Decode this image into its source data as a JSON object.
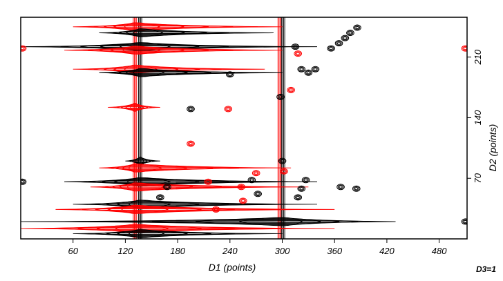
{
  "chart_data": {
    "type": "contour",
    "xlabel": "D1 (points)",
    "ylabel": "D2 (points)",
    "corner_label": "D3=1",
    "xlim": [
      0,
      512
    ],
    "ylim": [
      0,
      256
    ],
    "x_ticks": [
      {
        "value": 60,
        "label": "60"
      },
      {
        "value": 120,
        "label": "120"
      },
      {
        "value": 180,
        "label": "180"
      },
      {
        "value": 240,
        "label": "240"
      },
      {
        "value": 300,
        "label": "300"
      },
      {
        "value": 360,
        "label": "360"
      },
      {
        "value": 420,
        "label": "420"
      },
      {
        "value": 480,
        "label": "480"
      }
    ],
    "y_ticks": [
      {
        "value": 70,
        "label": "70"
      },
      {
        "value": 140,
        "label": "140"
      },
      {
        "value": 210,
        "label": "210"
      }
    ],
    "colors": {
      "positive": "#000000",
      "negative": "#ff0000"
    },
    "vertical_ridges": [
      {
        "x": 131,
        "color": "negative"
      },
      {
        "x": 137,
        "color": "positive"
      },
      {
        "x": 297,
        "color": "negative"
      },
      {
        "x": 301,
        "color": "positive"
      }
    ],
    "streaks": [
      {
        "y": 245,
        "x_start": 60,
        "x_end": 300,
        "peak": 131,
        "color": "negative"
      },
      {
        "y": 238,
        "x_start": 90,
        "x_end": 290,
        "peak": 137,
        "color": "positive"
      },
      {
        "y": 222,
        "x_start": 0,
        "x_end": 340,
        "peak": 137,
        "color": "positive"
      },
      {
        "y": 218,
        "x_start": 50,
        "x_end": 300,
        "peak": 131,
        "color": "negative"
      },
      {
        "y": 196,
        "x_start": 60,
        "x_end": 280,
        "peak": 131,
        "color": "negative"
      },
      {
        "y": 192,
        "x_start": 90,
        "x_end": 300,
        "peak": 137,
        "color": "positive"
      },
      {
        "y": 152,
        "x_start": 100,
        "x_end": 160,
        "peak": 131,
        "color": "negative"
      },
      {
        "y": 90,
        "x_start": 120,
        "x_end": 160,
        "peak": 137,
        "color": "positive"
      },
      {
        "y": 82,
        "x_start": 90,
        "x_end": 310,
        "peak": 131,
        "color": "negative"
      },
      {
        "y": 66,
        "x_start": 50,
        "x_end": 340,
        "peak": 137,
        "color": "positive"
      },
      {
        "y": 60,
        "x_start": 80,
        "x_end": 330,
        "peak": 131,
        "color": "negative"
      },
      {
        "y": 40,
        "x_start": 60,
        "x_end": 340,
        "peak": 137,
        "color": "positive"
      },
      {
        "y": 34,
        "x_start": 40,
        "x_end": 360,
        "peak": 131,
        "color": "negative"
      },
      {
        "y": 20,
        "x_start": 0,
        "x_end": 430,
        "peak": 301,
        "color": "positive"
      },
      {
        "y": 12,
        "x_start": 0,
        "x_end": 360,
        "peak": 131,
        "color": "negative"
      },
      {
        "y": 6,
        "x_start": 60,
        "x_end": 300,
        "peak": 137,
        "color": "positive"
      }
    ],
    "peaks": [
      {
        "x": 365,
        "y": 226,
        "color": "positive"
      },
      {
        "x": 372,
        "y": 232,
        "color": "positive"
      },
      {
        "x": 378,
        "y": 238,
        "color": "positive"
      },
      {
        "x": 386,
        "y": 244,
        "color": "positive"
      },
      {
        "x": 356,
        "y": 220,
        "color": "positive"
      },
      {
        "x": 315,
        "y": 222,
        "color": "positive"
      },
      {
        "x": 318,
        "y": 214,
        "color": "negative"
      },
      {
        "x": 322,
        "y": 196,
        "color": "positive"
      },
      {
        "x": 330,
        "y": 192,
        "color": "positive"
      },
      {
        "x": 338,
        "y": 196,
        "color": "positive"
      },
      {
        "x": 240,
        "y": 190,
        "color": "positive"
      },
      {
        "x": 195,
        "y": 150,
        "color": "positive"
      },
      {
        "x": 195,
        "y": 110,
        "color": "negative"
      },
      {
        "x": 238,
        "y": 150,
        "color": "negative"
      },
      {
        "x": 310,
        "y": 172,
        "color": "negative"
      },
      {
        "x": 298,
        "y": 164,
        "color": "positive"
      },
      {
        "x": 300,
        "y": 90,
        "color": "positive"
      },
      {
        "x": 302,
        "y": 78,
        "color": "negative"
      },
      {
        "x": 322,
        "y": 58,
        "color": "positive"
      },
      {
        "x": 318,
        "y": 48,
        "color": "positive"
      },
      {
        "x": 327,
        "y": 68,
        "color": "positive"
      },
      {
        "x": 253,
        "y": 60,
        "color": "negative"
      },
      {
        "x": 272,
        "y": 52,
        "color": "positive"
      },
      {
        "x": 265,
        "y": 68,
        "color": "positive"
      },
      {
        "x": 270,
        "y": 76,
        "color": "negative"
      },
      {
        "x": 215,
        "y": 66,
        "color": "negative"
      },
      {
        "x": 160,
        "y": 48,
        "color": "positive"
      },
      {
        "x": 168,
        "y": 60,
        "color": "positive"
      },
      {
        "x": 367,
        "y": 60,
        "color": "positive"
      },
      {
        "x": 385,
        "y": 58,
        "color": "positive"
      },
      {
        "x": 255,
        "y": 44,
        "color": "negative"
      },
      {
        "x": 224,
        "y": 34,
        "color": "negative"
      },
      {
        "x": 510,
        "y": 220,
        "color": "negative"
      },
      {
        "x": 510,
        "y": 20,
        "color": "positive"
      },
      {
        "x": 2,
        "y": 220,
        "color": "negative"
      },
      {
        "x": 2,
        "y": 66,
        "color": "positive"
      }
    ]
  }
}
